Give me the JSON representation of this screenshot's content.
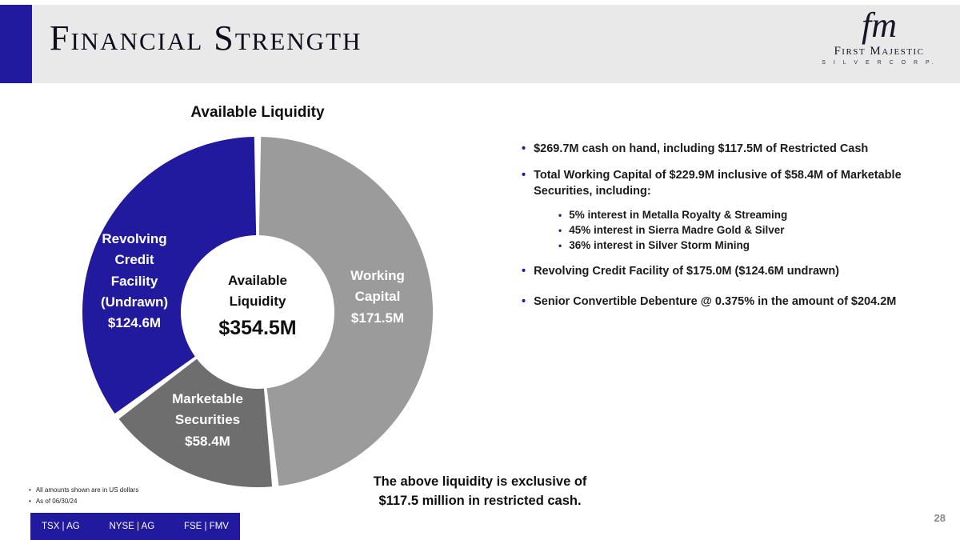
{
  "slide": {
    "title": "Financial Strength",
    "page_number": "28"
  },
  "logo": {
    "monogram": "fm",
    "name": "First Majestic",
    "subtitle": "S I L V E R   C O R P."
  },
  "chart": {
    "title": "Available Liquidity",
    "center_title": "Available\nLiquidity",
    "center_value": "$354.5M"
  },
  "chart_data": {
    "type": "pie",
    "subtype": "donut",
    "title": "Available Liquidity",
    "total": 354.5,
    "total_label": "$354.5M",
    "start_angle_deg": 0,
    "direction": "clockwise",
    "segments": [
      {
        "label": "Working Capital",
        "value": 171.5,
        "value_label": "$171.5M",
        "display": "Working\nCapital\n$171.5M",
        "color": "#9b9b9b"
      },
      {
        "label": "Marketable Securities",
        "value": 58.4,
        "value_label": "$58.4M",
        "display": "Marketable\nSecurities\n$58.4M",
        "color": "#6e6e6e"
      },
      {
        "label": "Revolving Credit Facility (Undrawn)",
        "value": 124.6,
        "value_label": "$124.6M",
        "display": "Revolving\nCredit\nFacility\n(Undrawn)\n$124.6M",
        "color": "#221a9e"
      }
    ]
  },
  "bullets": [
    {
      "text": "$269.7M cash on hand, including $117.5M of Restricted Cash"
    },
    {
      "text": "Total Working Capital of $229.9M inclusive of $58.4M of Marketable Securities, including:",
      "subs": [
        "5% interest in Metalla Royalty & Streaming",
        "45% interest in Sierra Madre Gold & Silver",
        "36% interest in Silver Storm Mining"
      ]
    },
    {
      "text": "Revolving Credit Facility of $175.0M ($124.6M undrawn)"
    },
    {
      "text": "Senior Convertible Debenture @ 0.375% in the amount of $204.2M"
    }
  ],
  "note": "The above liquidity is exclusive of\n$117.5 million in restricted cash.",
  "footnotes": [
    "All amounts shown are in US dollars",
    "As of 06/30/24"
  ],
  "tickers": [
    "TSX | AG",
    "NYSE | AG",
    "FSE | FMV"
  ],
  "colors": {
    "accent_blue": "#221a9e",
    "working_capital_gray": "#9b9b9b",
    "marketable_securities_gray": "#6e6e6e",
    "header_band_gray": "#e9e9e9"
  }
}
